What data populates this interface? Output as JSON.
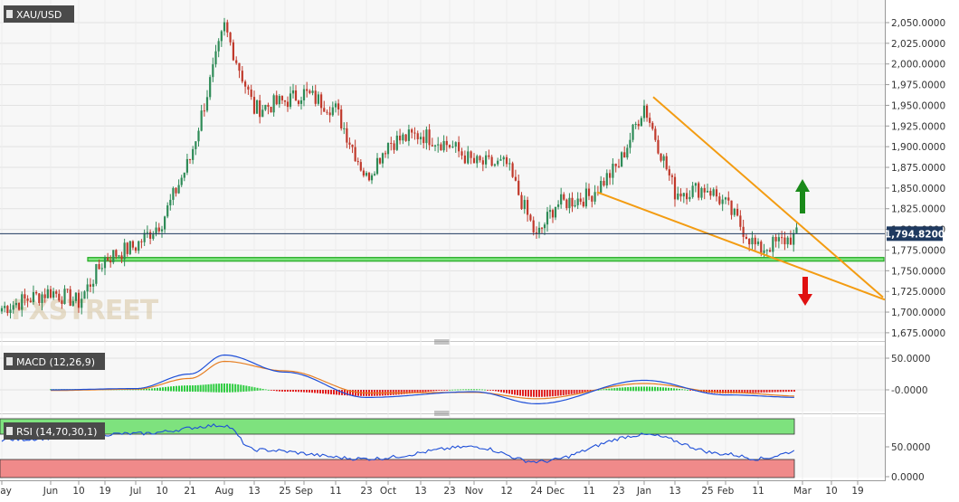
{
  "colors": {
    "up": "#2e8b57",
    "down": "#c0392b",
    "trendline": "#f39c12",
    "support": "#22cc22",
    "price_line": "#1f3a60",
    "macd_line": "#1e4fd8",
    "signal_line": "#e67e22",
    "hist_pos": "#2ecc40",
    "hist_neg": "#e02020",
    "rsi_line": "#1e4fd8",
    "rsi_over": "#7ee27e",
    "rsi_under": "#f08a8a",
    "arrow_up": "#1a8a1a",
    "arrow_down": "#e01010"
  },
  "watermark": "FXSTREET",
  "price_panel": {
    "label": "XAU/USD",
    "current_price": "1,794.8200",
    "y_ticks": [
      "2,050.0000",
      "2,025.0000",
      "2,000.0000",
      "1,975.0000",
      "1,950.0000",
      "1,925.0000",
      "1,900.0000",
      "1,875.0000",
      "1,850.0000",
      "1,825.0000",
      "1,800.0000",
      "1,775.0000",
      "1,750.0000",
      "1,725.0000",
      "1,700.0000",
      "1,675.0000"
    ]
  },
  "macd_panel": {
    "label": "MACD (12,26,9)",
    "y_ticks": [
      "50.0000",
      "-0.0000"
    ]
  },
  "rsi_panel": {
    "label": "RSI (14,70,30,1)",
    "y_ticks": [
      "50.0000",
      "0.0000"
    ]
  },
  "x_axis": {
    "ticks": [
      "May",
      "Jun",
      "10",
      "19",
      "Jul",
      "10",
      "21",
      "Aug",
      "13",
      "25",
      "Sep",
      "11",
      "23",
      "Oct",
      "13",
      "23",
      "Nov",
      "12",
      "24",
      "Dec",
      "11",
      "23",
      "Jan",
      "13",
      "25",
      "Feb",
      "11",
      "Mar",
      "10",
      "19"
    ]
  },
  "chart_data": [
    {
      "type": "candlestick",
      "title": "XAU/USD",
      "x_range": [
        "May",
        "Mar"
      ],
      "ylim": [
        1665,
        2075
      ],
      "last_price": 1794.82,
      "support_zone": [
        1762,
        1766
      ],
      "series": [
        {
          "name": "close_path",
          "points": [
            {
              "x": "May",
              "close": 1705
            },
            {
              "x": "Jun",
              "close": 1725
            },
            {
              "x": "10",
              "close": 1712
            },
            {
              "x": "19",
              "close": 1765
            },
            {
              "x": "Jul",
              "close": 1780
            },
            {
              "x": "10",
              "close": 1810
            },
            {
              "x": "21",
              "close": 1885
            },
            {
              "x": "Aug",
              "close": 2045
            },
            {
              "x": "13",
              "close": 1945
            },
            {
              "x": "25",
              "close": 1955
            },
            {
              "x": "Sep",
              "close": 1965
            },
            {
              "x": "11",
              "close": 1945
            },
            {
              "x": "23",
              "close": 1862
            },
            {
              "x": "Oct",
              "close": 1905
            },
            {
              "x": "13",
              "close": 1915
            },
            {
              "x": "23",
              "close": 1902
            },
            {
              "x": "Nov",
              "close": 1880
            },
            {
              "x": "12",
              "close": 1878
            },
            {
              "x": "24",
              "close": 1790
            },
            {
              "x": "Dec",
              "close": 1830
            },
            {
              "x": "11",
              "close": 1840
            },
            {
              "x": "23",
              "close": 1878
            },
            {
              "x": "Jan",
              "close": 1950
            },
            {
              "x": "13",
              "close": 1845
            },
            {
              "x": "25",
              "close": 1850
            },
            {
              "x": "Feb",
              "close": 1830
            },
            {
              "x": "11",
              "close": 1775
            },
            {
              "x": "Mar",
              "close": 1794.82
            }
          ]
        }
      ]
    },
    {
      "type": "line",
      "title": "MACD (12,26,9)",
      "ylim": [
        -25,
        60
      ],
      "series": [
        {
          "name": "macd",
          "points": [
            {
              "x": "Jun",
              "y": 0
            },
            {
              "x": "Jul",
              "y": 2
            },
            {
              "x": "21",
              "y": 25
            },
            {
              "x": "Aug",
              "y": 55
            },
            {
              "x": "25",
              "y": 28
            },
            {
              "x": "23",
              "y": -12
            },
            {
              "x": "Nov",
              "y": -3
            },
            {
              "x": "24",
              "y": -22
            },
            {
              "x": "Jan",
              "y": 15
            },
            {
              "x": "Feb",
              "y": -8
            },
            {
              "x": "Mar",
              "y": -12
            }
          ]
        },
        {
          "name": "signal",
          "points": [
            {
              "x": "Jun",
              "y": -1
            },
            {
              "x": "Jul",
              "y": 1
            },
            {
              "x": "21",
              "y": 18
            },
            {
              "x": "Aug",
              "y": 45
            },
            {
              "x": "25",
              "y": 30
            },
            {
              "x": "23",
              "y": -5
            },
            {
              "x": "Nov",
              "y": -4
            },
            {
              "x": "24",
              "y": -14
            },
            {
              "x": "Jan",
              "y": 10
            },
            {
              "x": "Feb",
              "y": -4
            },
            {
              "x": "Mar",
              "y": -10
            }
          ]
        }
      ]
    },
    {
      "type": "line",
      "title": "RSI (14,70,30,1)",
      "ylim": [
        0,
        100
      ],
      "bands": {
        "overbought": 70,
        "oversold": 30
      },
      "series": [
        {
          "name": "rsi",
          "points": [
            {
              "x": "May",
              "y": 62
            },
            {
              "x": "Jul",
              "y": 72
            },
            {
              "x": "Aug",
              "y": 86
            },
            {
              "x": "13",
              "y": 45
            },
            {
              "x": "23",
              "y": 30
            },
            {
              "x": "Nov",
              "y": 50
            },
            {
              "x": "24",
              "y": 25
            },
            {
              "x": "Jan",
              "y": 70
            },
            {
              "x": "Feb",
              "y": 38
            },
            {
              "x": "11",
              "y": 30
            },
            {
              "x": "Mar",
              "y": 44
            }
          ]
        }
      ]
    }
  ]
}
